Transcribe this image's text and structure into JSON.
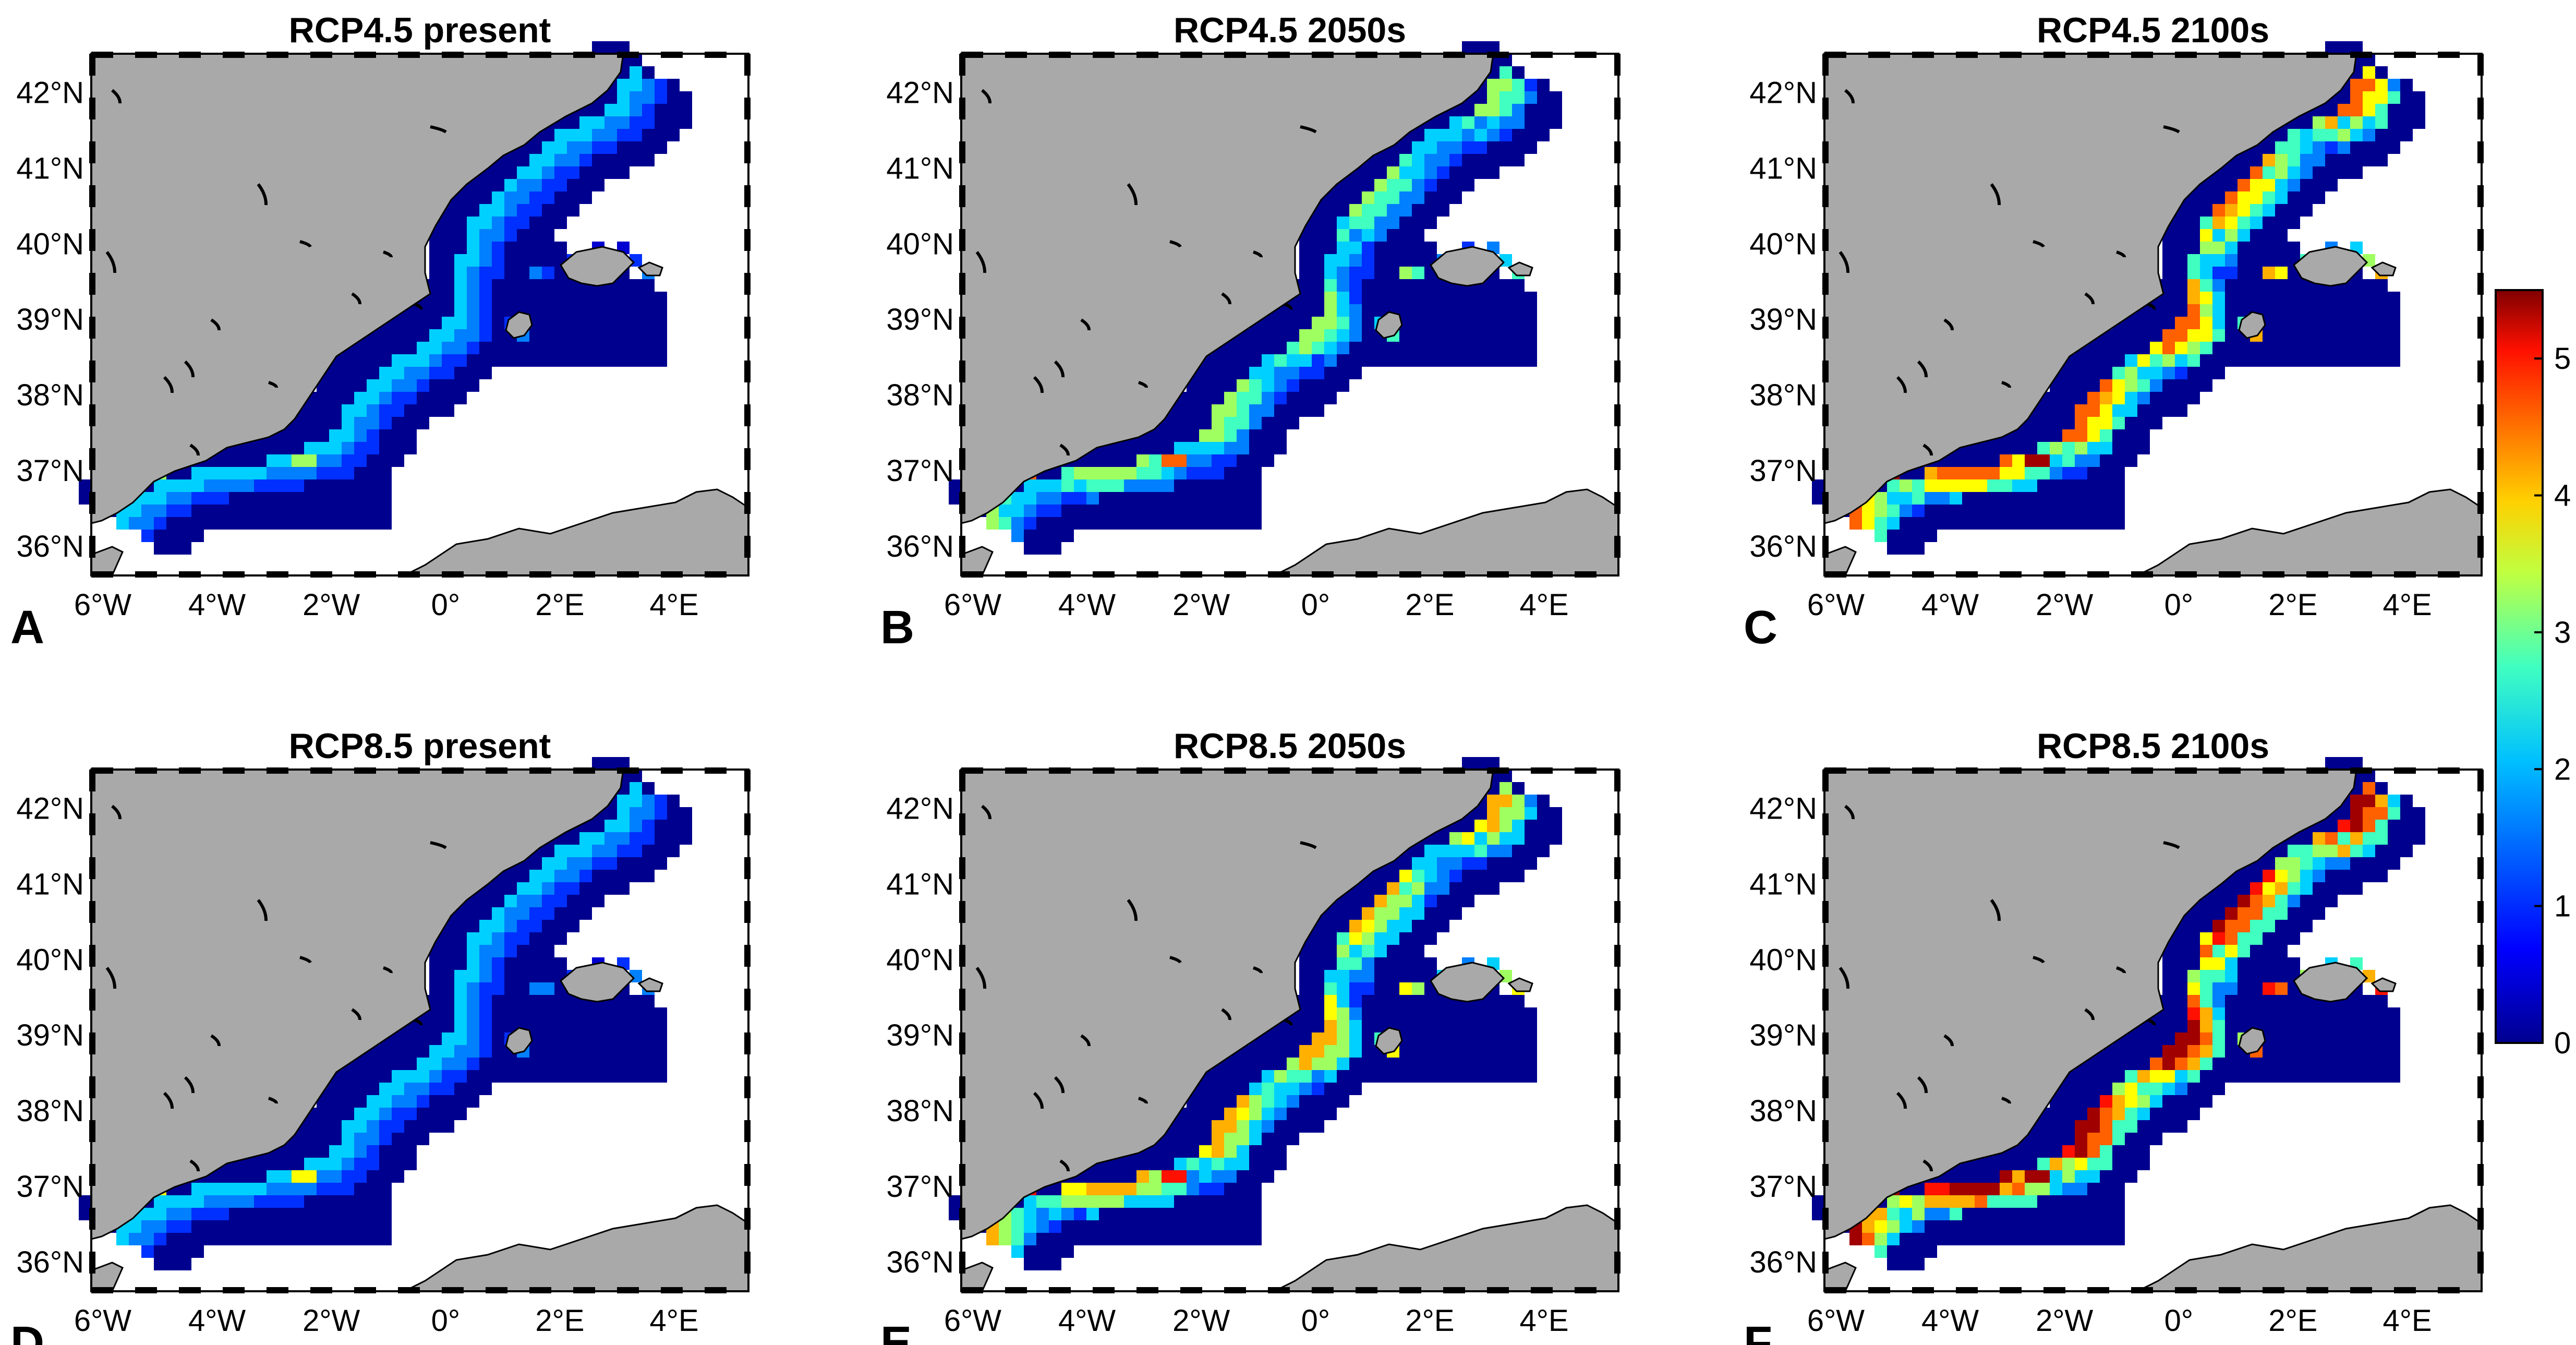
{
  "figure": {
    "panels": [
      {
        "letter": "A",
        "title": "RCP4.5 present"
      },
      {
        "letter": "B",
        "title": "RCP4.5 2050s"
      },
      {
        "letter": "C",
        "title": "RCP4.5 2100s"
      },
      {
        "letter": "D",
        "title": "RCP8.5 present"
      },
      {
        "letter": "E",
        "title": "RCP8.5 2050s"
      },
      {
        "letter": "F",
        "title": "RCP8.5 2100s"
      }
    ],
    "lat_ticks": [
      "36°N",
      "37°N",
      "38°N",
      "39°N",
      "40°N",
      "41°N",
      "42°N"
    ],
    "lon_ticks": [
      "6°W",
      "4°W",
      "2°W",
      "0°",
      "2°E",
      "4°E"
    ],
    "colorbar": {
      "min": 0,
      "max": 5.5,
      "ticks": [
        "0",
        "1",
        "2",
        "3",
        "4",
        "5"
      ]
    },
    "extent": {
      "lon_min": -6.2,
      "lon_max": 5.3,
      "lat_min": 35.6,
      "lat_max": 42.5
    },
    "colors": {
      "land": "#a9a9a9",
      "sea": "#ffffff",
      "colormap": [
        "#00008f",
        "#0000ff",
        "#0080ff",
        "#00ffff",
        "#80ff80",
        "#ffff00",
        "#ff8000",
        "#ff0000",
        "#800000"
      ]
    }
  }
}
